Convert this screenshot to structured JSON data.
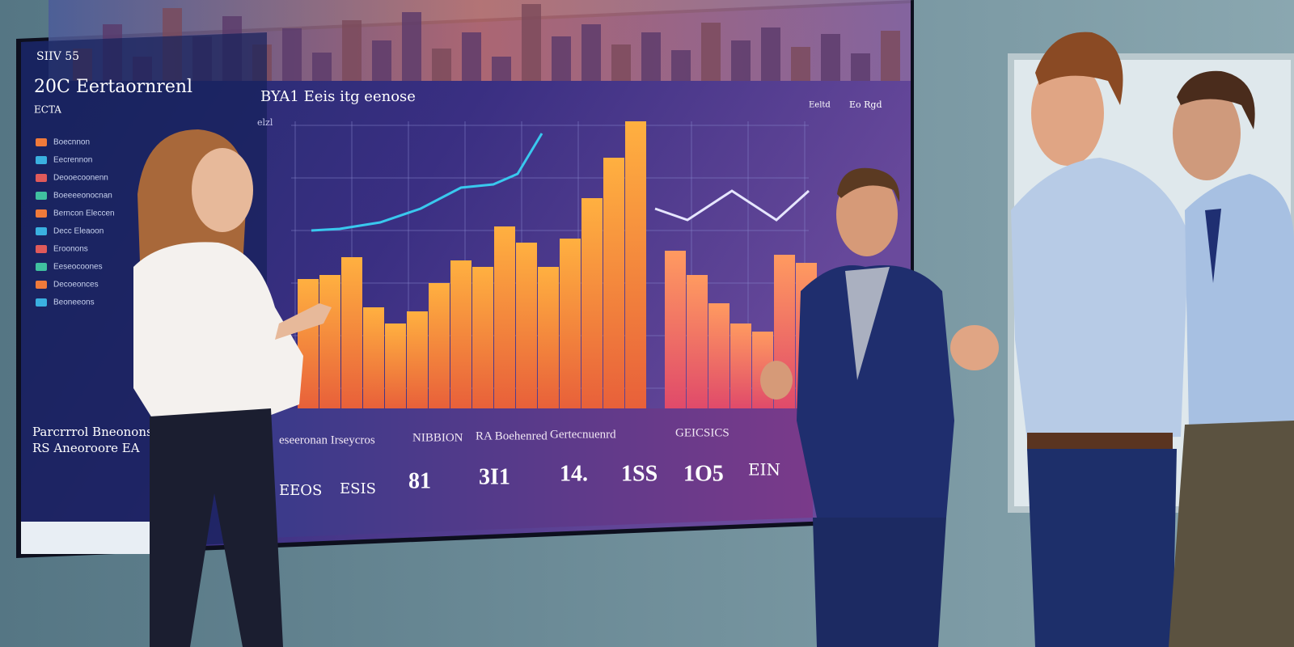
{
  "screen": {
    "badge": "SIIV 55",
    "title": "20C Eertaornrenl",
    "subtitle": "ECTA",
    "menu": [
      "Boecnnon",
      "Eecrennon",
      "Deooecoonenn",
      "Boeeeeonocnan",
      "Berncon Eleccen",
      "Decc Eleaoon",
      "Eroonons",
      "Eeseocoones",
      "Decoeonces",
      "Beoneeons"
    ],
    "chart_title": "BYA1 Eeis itg eenose",
    "axis_label": "elzl",
    "legend": "Eeltd",
    "side_note": "Eo Rgd",
    "footer_title": "Parcrrrol Bneonons",
    "footer_subtitle": "RS Aneoroore EA",
    "kpi_headers": [
      "eseeronan Irseycros",
      "NIBBION",
      "RA Boehenred",
      "Gertecnuenrd",
      "GEICSICS"
    ],
    "kpi_values": [
      "EEOS",
      "ESIS",
      "81",
      "3I1",
      "14.",
      "1SS",
      "1O5",
      "EIN"
    ]
  }
}
